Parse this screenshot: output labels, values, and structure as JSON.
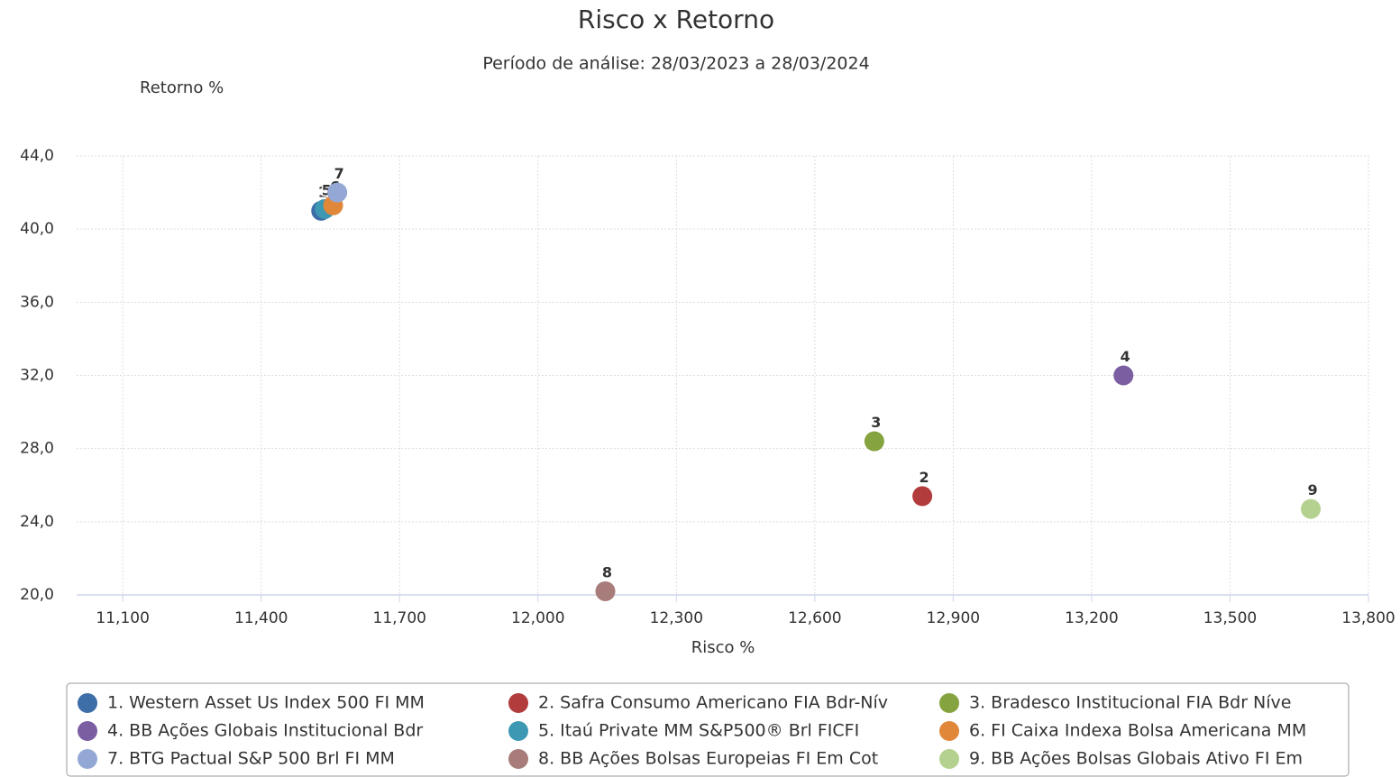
{
  "chart_data": {
    "type": "scatter",
    "title": "Risco x Retorno",
    "subtitle": "Período de análise: 28/03/2023 a 28/03/2024",
    "ylabel": "Retorno %",
    "xlabel": "Risco %",
    "xlim": [
      11.0,
      13.8
    ],
    "ylim": [
      20,
      44
    ],
    "xticks": [
      {
        "value": 11.1,
        "label": "11,100"
      },
      {
        "value": 11.4,
        "label": "11,400"
      },
      {
        "value": 11.7,
        "label": "11,700"
      },
      {
        "value": 12.0,
        "label": "12,000"
      },
      {
        "value": 12.3,
        "label": "12,300"
      },
      {
        "value": 12.6,
        "label": "12,600"
      },
      {
        "value": 12.9,
        "label": "12,900"
      },
      {
        "value": 13.2,
        "label": "13,200"
      },
      {
        "value": 13.5,
        "label": "13,500"
      },
      {
        "value": 13.8,
        "label": "13,800"
      }
    ],
    "yticks": [
      {
        "value": 20,
        "label": "20,0"
      },
      {
        "value": 24,
        "label": "24,0"
      },
      {
        "value": 28,
        "label": "28,0"
      },
      {
        "value": 32,
        "label": "32,0"
      },
      {
        "value": 36,
        "label": "36,0"
      },
      {
        "value": 40,
        "label": "40,0"
      },
      {
        "value": 44,
        "label": "44,0"
      }
    ],
    "grid": true,
    "legend": "bottom",
    "series": [
      {
        "name": "1. Western Asset Us Index 500 FI MM",
        "label": "1",
        "color": "#3d6ea8",
        "x": [
          11.53
        ],
        "values": [
          41.0
        ]
      },
      {
        "name": "2. Safra Consumo Americano FIA Bdr-Nív",
        "label": "2",
        "color": "#b23b3b",
        "x": [
          12.833
        ],
        "values": [
          25.4
        ]
      },
      {
        "name": "3. Bradesco Institucional FIA Bdr Níve",
        "label": "3",
        "color": "#85a33f",
        "x": [
          12.729
        ],
        "values": [
          28.4
        ]
      },
      {
        "name": "4. BB Ações Globais Institucional Bdr",
        "label": "4",
        "color": "#7b5ea1",
        "x": [
          13.269
        ],
        "values": [
          32.0
        ]
      },
      {
        "name": "5. Itaú Private MM S&P500® Brl FICFI",
        "label": "5",
        "color": "#3d98b4",
        "x": [
          11.538
        ],
        "values": [
          41.1
        ]
      },
      {
        "name": "6. FI Caixa Indexa Bolsa Americana MM",
        "label": "6",
        "color": "#e0873a",
        "x": [
          11.556
        ],
        "values": [
          41.3
        ]
      },
      {
        "name": "7. BTG Pactual S&P 500 Brl FI MM",
        "label": "7",
        "color": "#94a8d6",
        "x": [
          11.565
        ],
        "values": [
          42.0
        ]
      },
      {
        "name": "8. BB Ações Bolsas Europeias FI Em Cot",
        "label": "8",
        "color": "#a77c7a",
        "x": [
          12.146
        ],
        "values": [
          20.2
        ]
      },
      {
        "name": "9. BB Ações Bolsas Globais Ativo FI Em",
        "label": "9",
        "color": "#b5d18f",
        "x": [
          13.675
        ],
        "values": [
          24.7
        ]
      }
    ]
  }
}
